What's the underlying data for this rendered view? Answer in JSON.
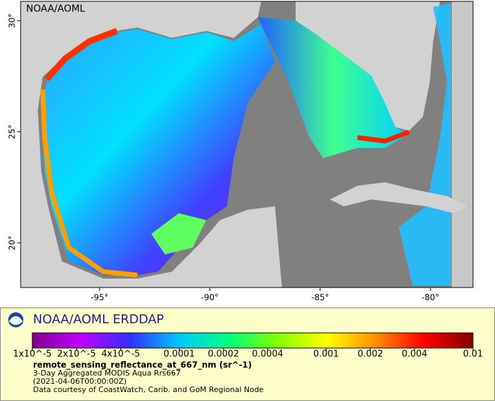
{
  "map": {
    "label": "NOAA/AOML",
    "xlim": [
      -98.58,
      -78.07
    ],
    "ylim": [
      17.99,
      30.87
    ],
    "xticks": [
      {
        "value": -95,
        "label": "-95°"
      },
      {
        "value": -90,
        "label": "-90°"
      },
      {
        "value": -85,
        "label": "-85°"
      },
      {
        "value": -80,
        "label": "-80°"
      }
    ],
    "yticks": [
      {
        "value": 20,
        "label": "20°"
      },
      {
        "value": 25,
        "label": "25°"
      },
      {
        "value": 30,
        "label": "30°"
      }
    ]
  },
  "legend": {
    "brand": "NOAA/AOML ERDDAP",
    "colorbar": {
      "log": true,
      "lim": [
        1e-05,
        0.01
      ],
      "colors": [
        "#80008c",
        "#c000ff",
        "#3030ff",
        "#00c8ff",
        "#00ff80",
        "#80ff00",
        "#ffff00",
        "#ff9000",
        "#ff0000",
        "#800000"
      ],
      "ticks": [
        {
          "value": 1e-05,
          "label": "1x10^-5"
        },
        {
          "value": 2e-05,
          "label": "2x10^-5"
        },
        {
          "value": 4e-05,
          "label": "4x10^-5"
        },
        0.0001,
        0.0002,
        0.0004,
        0.001,
        0.002,
        0.004,
        0.01
      ]
    },
    "variable": "remote_sensing_reflectance_at_667_nm (sr^-1)",
    "lines": [
      "3-Day Aggregated MODIS Aqua Rrs667",
      "(2021-04-06T00:00:00Z)",
      "Data courtesy of CoastWatch, Carib. and GoM Regional Node"
    ]
  }
}
